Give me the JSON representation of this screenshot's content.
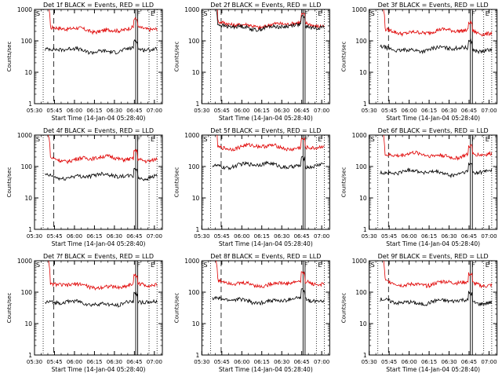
{
  "chart_data": [
    {
      "type": "line",
      "title": "Det 1f BLACK = Events, RED = LLD",
      "xlabel": "Start Time (14-Jan-04 05:28:40)",
      "ylabel": "Counts/sec",
      "x_ticks": [
        "05:30",
        "05:45",
        "06:00",
        "06:15",
        "06:30",
        "06:45",
        "07:00"
      ],
      "y_ticks": [
        "1",
        "10",
        "100",
        "1000"
      ],
      "yscale": "log",
      "ylim": [
        1,
        1000
      ],
      "event_markers": [
        "S",
        "F",
        "E"
      ],
      "grid": false,
      "series": [
        {
          "color": "#e00000",
          "approx_level": 230
        },
        {
          "color": "#000000",
          "approx_level": 50
        }
      ]
    },
    {
      "type": "line",
      "title": "Det 2f BLACK = Events, RED = LLD",
      "xlabel": "Start Time (14-Jan-04 05:28:40)",
      "ylabel": "Counts/sec",
      "x_ticks": [
        "05:30",
        "05:45",
        "06:00",
        "06:15",
        "06:30",
        "06:45",
        "07:00"
      ],
      "y_ticks": [
        "1",
        "10",
        "100",
        "1000"
      ],
      "yscale": "log",
      "ylim": [
        1,
        1000
      ],
      "event_markers": [
        "S",
        "F",
        "E"
      ],
      "grid": false,
      "series": [
        {
          "color": "#e00000",
          "approx_level": 330
        },
        {
          "color": "#000000",
          "approx_level": 280
        }
      ]
    },
    {
      "type": "line",
      "title": "Det 3f BLACK = Events, RED = LLD",
      "xlabel": "Start Time (14-Jan-04 05:28:40)",
      "ylabel": "Counts/sec",
      "x_ticks": [
        "05:30",
        "05:45",
        "06:00",
        "06:15",
        "06:30",
        "06:45",
        "07:00"
      ],
      "y_ticks": [
        "1",
        "10",
        "100",
        "1000"
      ],
      "yscale": "log",
      "ylim": [
        1,
        1000
      ],
      "event_markers": [
        "S",
        "F",
        "E"
      ],
      "grid": false,
      "series": [
        {
          "color": "#e00000",
          "approx_level": 200
        },
        {
          "color": "#000000",
          "approx_level": 55
        }
      ]
    },
    {
      "type": "line",
      "title": "Det 4f BLACK = Events, RED = LLD",
      "xlabel": "Start Time (14-Jan-04 05:28:40)",
      "ylabel": "Counts/sec",
      "x_ticks": [
        "05:30",
        "05:45",
        "06:00",
        "06:15",
        "06:30",
        "06:45",
        "07:00"
      ],
      "y_ticks": [
        "1",
        "10",
        "100",
        "1000"
      ],
      "yscale": "log",
      "ylim": [
        1,
        1000
      ],
      "event_markers": [
        "S",
        "F",
        "E"
      ],
      "grid": false,
      "series": [
        {
          "color": "#e00000",
          "approx_level": 180
        },
        {
          "color": "#000000",
          "approx_level": 50
        }
      ]
    },
    {
      "type": "line",
      "title": "Det 5f BLACK = Events, RED = LLD",
      "xlabel": "Start Time (14-Jan-04 05:28:40)",
      "ylabel": "Counts/sec",
      "x_ticks": [
        "05:30",
        "05:45",
        "06:00",
        "06:15",
        "06:30",
        "06:45",
        "07:00"
      ],
      "y_ticks": [
        "1",
        "10",
        "100",
        "1000"
      ],
      "yscale": "log",
      "ylim": [
        1,
        1000
      ],
      "event_markers": [
        "S",
        "F",
        "E"
      ],
      "grid": false,
      "series": [
        {
          "color": "#e00000",
          "approx_level": 420
        },
        {
          "color": "#000000",
          "approx_level": 110
        }
      ]
    },
    {
      "type": "line",
      "title": "Det 6f BLACK = Events, RED = LLD",
      "xlabel": "Start Time (14-Jan-04 05:28:40)",
      "ylabel": "Counts/sec",
      "x_ticks": [
        "05:30",
        "05:45",
        "06:00",
        "06:15",
        "06:30",
        "06:45",
        "07:00"
      ],
      "y_ticks": [
        "1",
        "10",
        "100",
        "1000"
      ],
      "yscale": "log",
      "ylim": [
        1,
        1000
      ],
      "event_markers": [
        "S",
        "F",
        "E"
      ],
      "grid": false,
      "series": [
        {
          "color": "#e00000",
          "approx_level": 230
        },
        {
          "color": "#000000",
          "approx_level": 65
        }
      ]
    },
    {
      "type": "line",
      "title": "Det 7f BLACK = Events, RED = LLD",
      "xlabel": "Start Time (14-Jan-04 05:28:40)",
      "ylabel": "Counts/sec",
      "x_ticks": [
        "05:30",
        "05:45",
        "06:00",
        "06:15",
        "06:30",
        "06:45",
        "07:00"
      ],
      "y_ticks": [
        "1",
        "10",
        "100",
        "1000"
      ],
      "yscale": "log",
      "ylim": [
        1,
        1000
      ],
      "event_markers": [
        "S",
        "F",
        "E"
      ],
      "grid": false,
      "series": [
        {
          "color": "#e00000",
          "approx_level": 160
        },
        {
          "color": "#000000",
          "approx_level": 45
        }
      ]
    },
    {
      "type": "line",
      "title": "Det 8f BLACK = Events, RED = LLD",
      "xlabel": "Start Time (14-Jan-04 05:28:40)",
      "ylabel": "Counts/sec",
      "x_ticks": [
        "05:30",
        "05:45",
        "06:00",
        "06:15",
        "06:30",
        "06:45",
        "07:00"
      ],
      "y_ticks": [
        "1",
        "10",
        "100",
        "1000"
      ],
      "yscale": "log",
      "ylim": [
        1,
        1000
      ],
      "event_markers": [
        "S",
        "F",
        "E"
      ],
      "grid": false,
      "series": [
        {
          "color": "#e00000",
          "approx_level": 190
        },
        {
          "color": "#000000",
          "approx_level": 55
        }
      ]
    },
    {
      "type": "line",
      "title": "Det 9f BLACK = Events, RED = LLD",
      "xlabel": "Start Time (14-Jan-04 05:28:40)",
      "ylabel": "Counts/sec",
      "x_ticks": [
        "05:30",
        "05:45",
        "06:00",
        "06:15",
        "06:30",
        "06:45",
        "07:00"
      ],
      "y_ticks": [
        "1",
        "10",
        "100",
        "1000"
      ],
      "yscale": "log",
      "ylim": [
        1,
        1000
      ],
      "event_markers": [
        "S",
        "F",
        "E"
      ],
      "grid": false,
      "series": [
        {
          "color": "#e00000",
          "approx_level": 190
        },
        {
          "color": "#000000",
          "approx_level": 50
        }
      ]
    }
  ]
}
